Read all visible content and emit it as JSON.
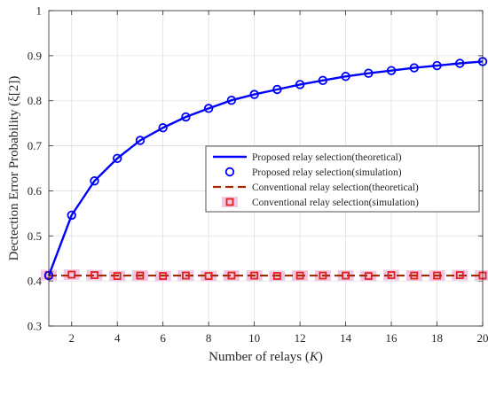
{
  "chart_data": {
    "type": "line",
    "title": "",
    "xlabel": "Number of relays (K)",
    "ylabel": "Dectection Error Probability (ξ[2])",
    "xlim": [
      1,
      20
    ],
    "ylim": [
      0.3,
      1
    ],
    "xticks": [
      2,
      4,
      6,
      8,
      10,
      12,
      14,
      16,
      18,
      20
    ],
    "yticks": [
      0.3,
      0.4,
      0.5,
      0.6,
      0.7,
      0.8,
      0.9,
      1
    ],
    "xtick_labels": [
      "2",
      "4",
      "6",
      "8",
      "10",
      "12",
      "14",
      "16",
      "18",
      "20"
    ],
    "ytick_labels": [
      "0.3",
      "0.4",
      "0.5",
      "0.6",
      "0.7",
      "0.8",
      "0.9",
      "1"
    ],
    "grid": true,
    "legend_position": "right, middle",
    "x": [
      1,
      2,
      3,
      4,
      5,
      6,
      7,
      8,
      9,
      10,
      11,
      12,
      13,
      14,
      15,
      16,
      17,
      18,
      19,
      20
    ],
    "series": [
      {
        "name": "Proposed relay selection(theoretical)",
        "style": "solid-line",
        "color": "#0000ff",
        "values": [
          0.412,
          0.546,
          0.622,
          0.672,
          0.712,
          0.74,
          0.764,
          0.783,
          0.801,
          0.814,
          0.825,
          0.836,
          0.845,
          0.854,
          0.861,
          0.867,
          0.873,
          0.878,
          0.883,
          0.887
        ]
      },
      {
        "name": "Proposed relay selection(simulation)",
        "style": "circle-markers",
        "color": "#0000ff",
        "values": [
          0.412,
          0.546,
          0.622,
          0.672,
          0.712,
          0.74,
          0.764,
          0.783,
          0.801,
          0.814,
          0.825,
          0.836,
          0.845,
          0.854,
          0.861,
          0.867,
          0.873,
          0.878,
          0.883,
          0.887
        ]
      },
      {
        "name": "Conventional relay selection(theoretical)",
        "style": "dashed-line",
        "color": "#a52a00",
        "values": [
          0.412,
          0.412,
          0.412,
          0.412,
          0.412,
          0.412,
          0.412,
          0.412,
          0.412,
          0.412,
          0.412,
          0.412,
          0.412,
          0.412,
          0.412,
          0.412,
          0.412,
          0.412,
          0.412,
          0.412
        ]
      },
      {
        "name": "Conventional relay selection(simulation)",
        "style": "square-markers",
        "color": "#e8201a",
        "halo_color": "#f0c8e6",
        "values": [
          0.413,
          0.414,
          0.413,
          0.411,
          0.412,
          0.411,
          0.412,
          0.411,
          0.412,
          0.412,
          0.411,
          0.412,
          0.412,
          0.412,
          0.411,
          0.413,
          0.412,
          0.412,
          0.413,
          0.412
        ]
      }
    ]
  }
}
